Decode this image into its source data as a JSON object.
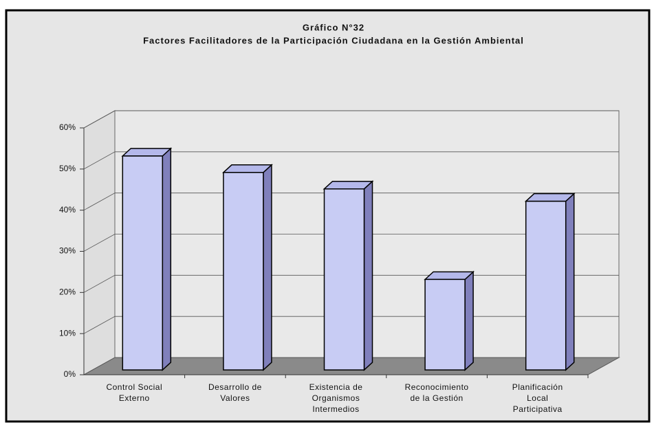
{
  "chart_data": {
    "type": "bar3d",
    "title": "Gráfico N°32",
    "subtitle": "Factores Facilitadores de la Participación Ciudadana en la Gestión Ambiental",
    "categories": [
      "Control Social\nExterno",
      "Desarrollo de\nValores",
      "Existencia de\nOrganismos\nIntermedios",
      "Reconocimiento\nde la Gestión",
      "Planificación\nLocal\nParticipativa"
    ],
    "values": [
      52,
      48,
      44,
      22,
      41
    ],
    "color": "#c8ccf4",
    "ylim": [
      0,
      60
    ],
    "yticks": [
      {
        "value": 0,
        "label": "0%"
      },
      {
        "value": 10,
        "label": "10%"
      },
      {
        "value": 20,
        "label": "20%"
      },
      {
        "value": 30,
        "label": "30%"
      },
      {
        "value": 40,
        "label": "40%"
      },
      {
        "value": 50,
        "label": "50%"
      },
      {
        "value": 60,
        "label": "60%"
      }
    ],
    "grid": true
  }
}
